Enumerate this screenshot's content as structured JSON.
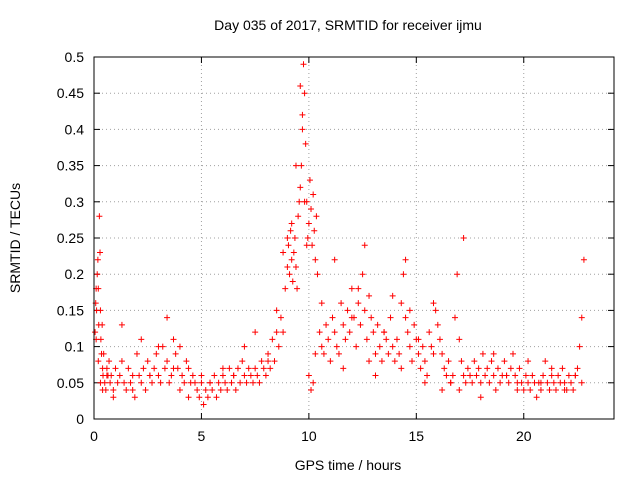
{
  "chart_data": {
    "type": "scatter",
    "title": "Day 035 of 2017, SRMTID for receiver ijmu",
    "xlabel": "GPS time / hours",
    "ylabel": "SRMTID / TECUs",
    "xlim": [
      0,
      24.2
    ],
    "ylim": [
      0,
      0.5
    ],
    "x_ticks": [
      0,
      5,
      10,
      15,
      20
    ],
    "x_tick_labels": [
      "0",
      "5",
      "10",
      "15",
      "20"
    ],
    "y_ticks": [
      0,
      0.05,
      0.1,
      0.15,
      0.2,
      0.25,
      0.3,
      0.35,
      0.4,
      0.45,
      0.5
    ],
    "y_tick_labels": [
      "0",
      "0.05",
      "0.1",
      "0.15",
      "0.2",
      "0.25",
      "0.3",
      "0.35",
      "0.4",
      "0.45",
      "0.5"
    ],
    "grid": true,
    "marker": "+",
    "color": "#ff0000",
    "series": [
      {
        "name": "SRMTID",
        "x": [
          0.05,
          0.08,
          0.1,
          0.12,
          0.15,
          0.18,
          0.2,
          0.22,
          0.25,
          0.28,
          0.3,
          0.32,
          0.35,
          0.38,
          0.4,
          0.42,
          0.45,
          0.5,
          0.55,
          0.6,
          0.65,
          0.7,
          0.75,
          0.8,
          0.9,
          1.0,
          1.1,
          1.2,
          1.3,
          1.4,
          1.5,
          1.6,
          1.7,
          1.8,
          1.9,
          2.0,
          2.1,
          2.2,
          2.3,
          2.4,
          2.5,
          2.6,
          2.7,
          2.8,
          2.9,
          3.0,
          3.1,
          3.2,
          3.3,
          3.4,
          3.5,
          3.6,
          3.7,
          3.8,
          3.9,
          4.0,
          4.1,
          4.2,
          4.3,
          4.4,
          4.5,
          4.6,
          4.7,
          4.8,
          4.9,
          5.0,
          5.1,
          5.2,
          5.3,
          5.4,
          5.5,
          5.6,
          5.7,
          5.8,
          5.9,
          6.0,
          6.1,
          6.2,
          6.3,
          6.4,
          6.5,
          6.6,
          6.7,
          6.8,
          6.9,
          7.0,
          7.1,
          7.2,
          7.3,
          7.4,
          7.5,
          7.6,
          7.7,
          7.8,
          7.9,
          8.0,
          8.1,
          8.2,
          8.3,
          8.4,
          8.5,
          8.6,
          8.7,
          8.8,
          8.9,
          9.0,
          9.05,
          9.1,
          9.15,
          9.2,
          9.25,
          9.3,
          9.35,
          9.4,
          9.45,
          9.5,
          9.55,
          9.6,
          9.65,
          9.7,
          9.75,
          9.8,
          9.85,
          9.9,
          9.95,
          10.0,
          10.05,
          10.1,
          10.15,
          10.2,
          10.25,
          10.3,
          10.35,
          10.4,
          10.5,
          10.6,
          10.7,
          10.8,
          10.9,
          11.0,
          11.1,
          11.2,
          11.3,
          11.4,
          11.5,
          11.6,
          11.7,
          11.8,
          11.9,
          12.0,
          12.1,
          12.2,
          12.3,
          12.4,
          12.5,
          12.6,
          12.7,
          12.8,
          12.9,
          13.0,
          13.1,
          13.2,
          13.3,
          13.4,
          13.5,
          13.6,
          13.7,
          13.8,
          13.9,
          14.0,
          14.1,
          14.2,
          14.3,
          14.4,
          14.5,
          14.6,
          14.7,
          14.8,
          14.9,
          15.0,
          15.1,
          15.2,
          15.3,
          15.4,
          15.5,
          15.6,
          15.7,
          15.8,
          15.9,
          16.0,
          16.1,
          16.2,
          16.3,
          16.4,
          16.5,
          16.6,
          16.7,
          16.8,
          16.9,
          17.0,
          17.1,
          17.2,
          17.3,
          17.4,
          17.5,
          17.6,
          17.7,
          17.8,
          17.9,
          18.0,
          18.1,
          18.2,
          18.3,
          18.4,
          18.5,
          18.6,
          18.7,
          18.8,
          18.9,
          19.0,
          19.1,
          19.2,
          19.3,
          19.4,
          19.5,
          19.6,
          19.7,
          19.8,
          19.9,
          20.0,
          20.1,
          20.2,
          20.3,
          20.4,
          20.5,
          20.6,
          20.7,
          20.8,
          20.9,
          21.0,
          21.1,
          21.2,
          21.3,
          21.4,
          21.5,
          21.6,
          21.7,
          21.8,
          21.9,
          22.0,
          22.1,
          22.2,
          22.3,
          22.4,
          22.5,
          22.6,
          22.7,
          22.8,
          0.1,
          0.2,
          0.3,
          0.4,
          0.6,
          0.9,
          1.3,
          1.8,
          2.2,
          2.6,
          3.0,
          3.4,
          3.7,
          4.0,
          4.4,
          5.0,
          5.4,
          6.0,
          6.5,
          7.0,
          7.5,
          8.1,
          8.5,
          8.8,
          9.0,
          9.2,
          9.4,
          9.6,
          9.7,
          9.8,
          9.9,
          10.0,
          10.1,
          10.2,
          10.3,
          10.6,
          11.2,
          11.6,
          12.0,
          12.3,
          12.6,
          12.8,
          13.1,
          13.5,
          13.9,
          14.3,
          14.5,
          14.7,
          15.1,
          15.4,
          15.8,
          16.2,
          16.6,
          17.0,
          17.2,
          17.5,
          18.0,
          18.6,
          19.2,
          19.7,
          20.2,
          20.8,
          21.3,
          21.9,
          22.4,
          22.7
        ],
        "y": [
          0.12,
          0.16,
          0.18,
          0.15,
          0.2,
          0.22,
          0.18,
          0.13,
          0.28,
          0.23,
          0.15,
          0.11,
          0.09,
          0.13,
          0.07,
          0.06,
          0.09,
          0.05,
          0.04,
          0.07,
          0.06,
          0.08,
          0.05,
          0.06,
          0.04,
          0.07,
          0.05,
          0.06,
          0.08,
          0.05,
          0.04,
          0.07,
          0.05,
          0.06,
          0.03,
          0.09,
          0.06,
          0.05,
          0.07,
          0.04,
          0.08,
          0.06,
          0.05,
          0.07,
          0.09,
          0.06,
          0.05,
          0.1,
          0.07,
          0.08,
          0.05,
          0.06,
          0.11,
          0.09,
          0.07,
          0.1,
          0.06,
          0.05,
          0.08,
          0.07,
          0.05,
          0.06,
          0.05,
          0.04,
          0.03,
          0.05,
          0.02,
          0.04,
          0.03,
          0.05,
          0.04,
          0.06,
          0.03,
          0.05,
          0.04,
          0.06,
          0.05,
          0.04,
          0.07,
          0.05,
          0.06,
          0.04,
          0.07,
          0.05,
          0.08,
          0.06,
          0.05,
          0.07,
          0.06,
          0.05,
          0.07,
          0.06,
          0.05,
          0.08,
          0.07,
          0.06,
          0.09,
          0.07,
          0.11,
          0.08,
          0.12,
          0.1,
          0.14,
          0.12,
          0.18,
          0.21,
          0.24,
          0.2,
          0.26,
          0.22,
          0.19,
          0.23,
          0.25,
          0.21,
          0.18,
          0.28,
          0.3,
          0.32,
          0.35,
          0.42,
          0.49,
          0.45,
          0.38,
          0.3,
          0.25,
          0.27,
          0.33,
          0.29,
          0.24,
          0.31,
          0.26,
          0.22,
          0.28,
          0.2,
          0.12,
          0.1,
          0.09,
          0.13,
          0.11,
          0.08,
          0.14,
          0.12,
          0.1,
          0.09,
          0.16,
          0.13,
          0.11,
          0.15,
          0.12,
          0.18,
          0.14,
          0.1,
          0.16,
          0.13,
          0.2,
          0.15,
          0.11,
          0.17,
          0.14,
          0.12,
          0.09,
          0.13,
          0.1,
          0.08,
          0.12,
          0.11,
          0.09,
          0.14,
          0.1,
          0.08,
          0.11,
          0.09,
          0.16,
          0.2,
          0.14,
          0.12,
          0.1,
          0.08,
          0.13,
          0.11,
          0.09,
          0.07,
          0.1,
          0.08,
          0.06,
          0.12,
          0.1,
          0.09,
          0.15,
          0.13,
          0.11,
          0.09,
          0.07,
          0.06,
          0.08,
          0.05,
          0.06,
          0.14,
          0.2,
          0.11,
          0.08,
          0.06,
          0.05,
          0.07,
          0.06,
          0.05,
          0.08,
          0.06,
          0.07,
          0.05,
          0.09,
          0.06,
          0.07,
          0.05,
          0.08,
          0.06,
          0.04,
          0.07,
          0.05,
          0.06,
          0.08,
          0.06,
          0.05,
          0.07,
          0.09,
          0.06,
          0.05,
          0.07,
          0.05,
          0.04,
          0.06,
          0.05,
          0.04,
          0.06,
          0.05,
          0.03,
          0.05,
          0.04,
          0.06,
          0.08,
          0.05,
          0.04,
          0.06,
          0.05,
          0.04,
          0.06,
          0.05,
          0.07,
          0.05,
          0.04,
          0.06,
          0.05,
          0.04,
          0.06,
          0.07,
          0.1,
          0.14,
          0.22,
          0.11,
          0.08,
          0.05,
          0.04,
          0.06,
          0.03,
          0.13,
          0.04,
          0.11,
          0.06,
          0.1,
          0.14,
          0.07,
          0.04,
          0.03,
          0.06,
          0.05,
          0.07,
          0.06,
          0.1,
          0.12,
          0.08,
          0.15,
          0.23,
          0.25,
          0.27,
          0.35,
          0.46,
          0.4,
          0.3,
          0.24,
          0.06,
          0.04,
          0.05,
          0.09,
          0.16,
          0.22,
          0.07,
          0.14,
          0.18,
          0.24,
          0.08,
          0.06,
          0.12,
          0.17,
          0.07,
          0.22,
          0.15,
          0.11,
          0.05,
          0.16,
          0.04,
          0.05,
          0.04,
          0.25,
          0.06,
          0.03,
          0.09,
          0.06,
          0.04,
          0.08,
          0.05,
          0.07,
          0.04,
          0.06,
          0.05
        ]
      }
    ]
  }
}
